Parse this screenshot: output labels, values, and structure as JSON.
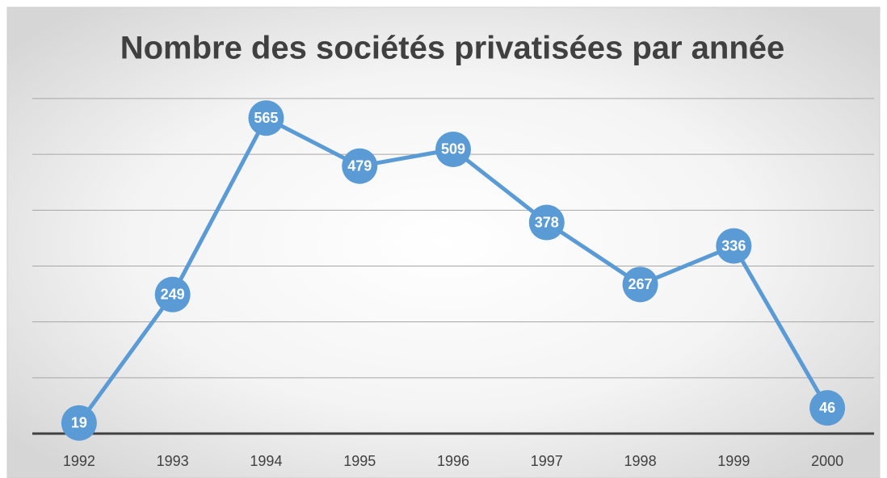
{
  "chart_data": {
    "type": "line",
    "title": "Nombre des sociétés privatisées par année",
    "categories": [
      "1992",
      "1993",
      "1994",
      "1995",
      "1996",
      "1997",
      "1998",
      "1999",
      "2000"
    ],
    "values": [
      19,
      249,
      565,
      479,
      509,
      378,
      267,
      336,
      46
    ],
    "color": "#5b9bd5",
    "ylim": [
      0,
      600
    ],
    "yticks": [
      0,
      100,
      200,
      300,
      400,
      500,
      600
    ],
    "grid": true
  }
}
